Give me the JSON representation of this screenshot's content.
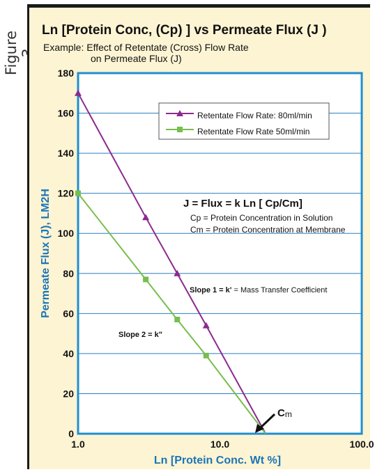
{
  "figure_label": "Figure 3",
  "chart_data": {
    "type": "line",
    "title": "Ln [Protein Conc, (Cp) ] vs Permeate Flux (J )",
    "subtitle_line1": "Example: Effect of Retentate (Cross) Flow Rate",
    "subtitle_line2": "on Permeate Flux (J)",
    "xlabel": "Ln [Protein Conc. Wt %]",
    "ylabel": "Permeate Flux (J), LM2H",
    "x_scale": "log",
    "xlim": [
      1,
      100
    ],
    "ylim": [
      0,
      180
    ],
    "x_ticks": [
      1,
      10,
      100
    ],
    "x_tick_labels": [
      "1.0",
      "10.0",
      "100.0"
    ],
    "y_ticks": [
      0,
      20,
      40,
      60,
      80,
      100,
      120,
      140,
      160,
      180
    ],
    "y_tick_labels": [
      "0",
      "20",
      "40",
      "60",
      "80",
      "100",
      "120",
      "140",
      "160",
      "180"
    ],
    "grid": "horizontal",
    "legend_position": "top-right",
    "series": [
      {
        "name": "Retentate Flow Rate: 80ml/min",
        "color": "#8b2a8e",
        "marker": "triangle",
        "points": [
          [
            1.0,
            170
          ],
          [
            3.0,
            108
          ],
          [
            5.0,
            80
          ],
          [
            8.0,
            54
          ],
          [
            21.0,
            0
          ]
        ]
      },
      {
        "name": "Retentate Flow Rate 50ml/min",
        "color": "#77be4c",
        "marker": "square",
        "points": [
          [
            1.0,
            120
          ],
          [
            3.0,
            77
          ],
          [
            5.0,
            57
          ],
          [
            8.0,
            39
          ],
          [
            21.0,
            0
          ]
        ]
      }
    ],
    "annotations": {
      "equation": "J = Flux = k Ln [ Cp/Cm]",
      "cp_def": "Cp  =  Protein Concentration in Solution",
      "cm_def": "Cm  =  Protein Concentration at Membrane",
      "slope1_bold": "Slope 1 = k'",
      "slope1_rest": " = Mass Transfer Coefficient",
      "slope2": "Slope 2 = k\"",
      "cm_label_main": "C",
      "cm_label_sub": "m"
    },
    "colors": {
      "axis_label": "#1a75b8",
      "grid": "#2a7fc0",
      "plot_border": "#1e8fd0",
      "panel_bg": "#fdf4d3",
      "arrow": "#111111"
    }
  }
}
